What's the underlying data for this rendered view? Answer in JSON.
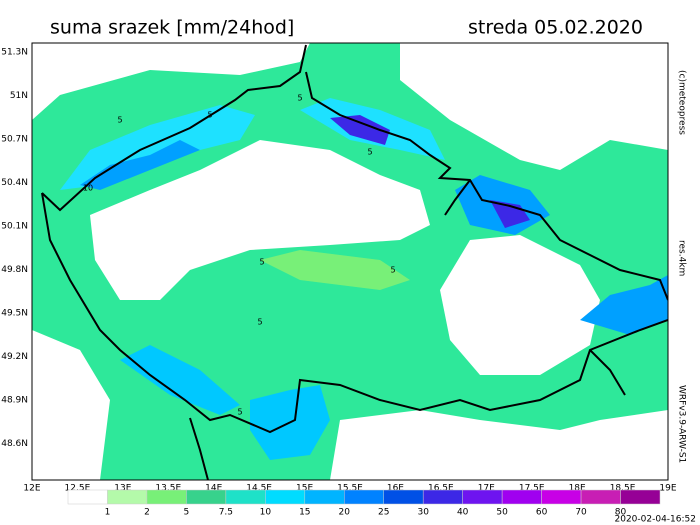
{
  "map": {
    "title": "suma srazek [mm/24hod]",
    "date": "streda 05.02.2020",
    "copyright": "(c)meteopress",
    "resolution": "res.4km",
    "model": "WRFv3.9-ARW-S1",
    "timestamp": "2020-02-04-16:52",
    "lat_labels": [
      "51.3N",
      "51N",
      "50.7N",
      "50.4N",
      "50.1N",
      "49.8N",
      "49.5N",
      "49.2N",
      "48.9N",
      "48.6N"
    ],
    "lon_labels": [
      "12E",
      "12.5E",
      "13E",
      "13.5E",
      "14E",
      "14.5E",
      "15E",
      "15.5E",
      "16E",
      "16.5E",
      "17E",
      "17.5E",
      "18E",
      "18.5E",
      "19E"
    ],
    "contour_labels": [
      "5",
      "5",
      "10",
      "5",
      "5",
      "5",
      "5",
      "5",
      "5"
    ],
    "colorbar": {
      "labels": [
        "1",
        "2",
        "5",
        "7.5",
        "10",
        "15",
        "20",
        "25",
        "30",
        "40",
        "50",
        "60",
        "70",
        "80"
      ],
      "colors": [
        "#ffffff",
        "#b4faaa",
        "#78f078",
        "#37d28c",
        "#1ee1c8",
        "#00dcff",
        "#00b4ff",
        "#0082ff",
        "#0050e6",
        "#3c28e6",
        "#6e14f0",
        "#a000f0",
        "#c800e6",
        "#c81eb4",
        "#960096"
      ]
    }
  }
}
